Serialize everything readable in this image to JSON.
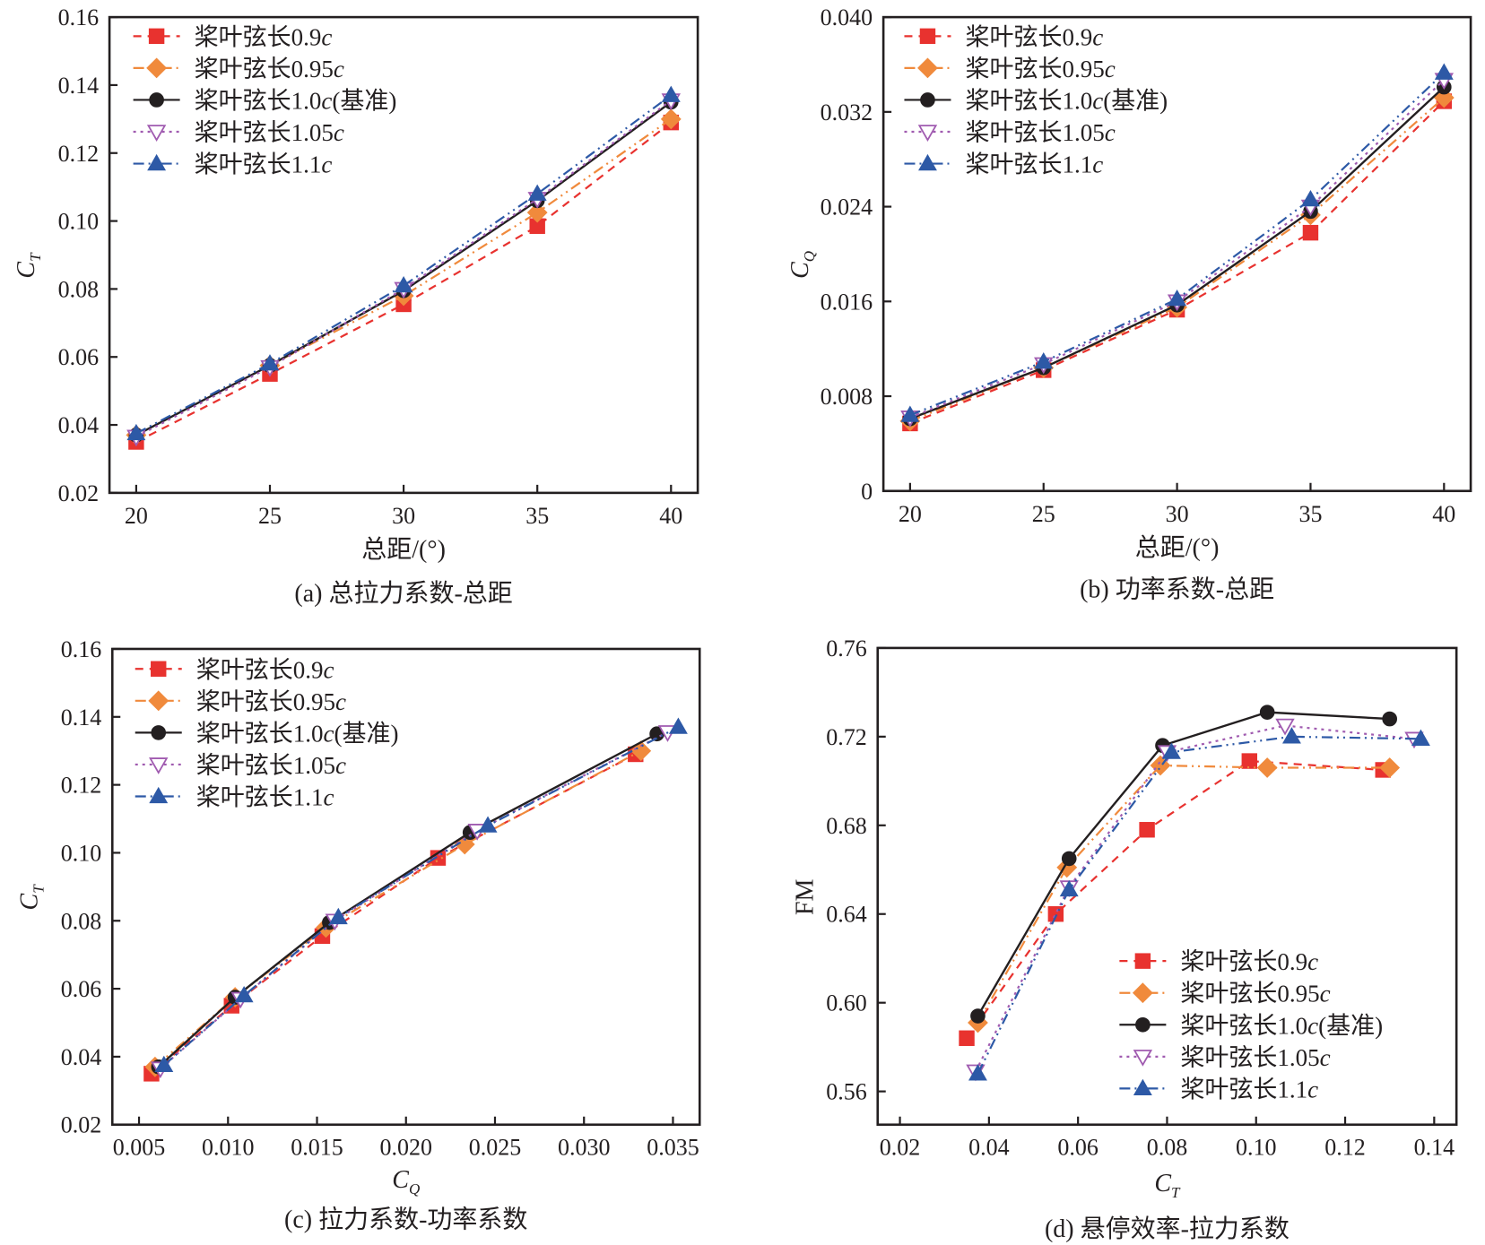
{
  "series_styles": [
    {
      "key": "s09",
      "color": "#e8322f",
      "dash": "dashed",
      "marker": "square",
      "filled": true
    },
    {
      "key": "s095",
      "color": "#f08a3c",
      "dash": "dash-dot-dot",
      "marker": "diamond",
      "filled": true
    },
    {
      "key": "s10",
      "color": "#231f20",
      "dash": "solid",
      "marker": "circle",
      "filled": true
    },
    {
      "key": "s105",
      "color": "#a05bb0",
      "dash": "dotted",
      "marker": "triangle-down",
      "filled": false
    },
    {
      "key": "s11",
      "color": "#2d59a6",
      "dash": "dash-dot-dot",
      "marker": "triangle-up",
      "filled": true
    }
  ],
  "legend_labels": [
    {
      "prefix": "桨叶弦长0.9",
      "italic": "c",
      "suffix": ""
    },
    {
      "prefix": "桨叶弦长0.95",
      "italic": "c",
      "suffix": ""
    },
    {
      "prefix": "桨叶弦长1.0",
      "italic": "c",
      "suffix": "(基准)"
    },
    {
      "prefix": "桨叶弦长1.05",
      "italic": "c",
      "suffix": ""
    },
    {
      "prefix": "桨叶弦长1.1",
      "italic": "c",
      "suffix": ""
    }
  ],
  "chart_data": [
    {
      "id": "a",
      "type": "line",
      "caption": "(a) 总拉力系数-总距",
      "xlabel": "总距/(°)",
      "ylabel": {
        "main": "C",
        "sub": "T"
      },
      "xlim": [
        19,
        41
      ],
      "ylim": [
        0.02,
        0.16
      ],
      "xticks": [
        20,
        25,
        30,
        35,
        40
      ],
      "xtick_labels": [
        "20",
        "25",
        "30",
        "35",
        "40"
      ],
      "yticks": [
        0.02,
        0.04,
        0.06,
        0.08,
        0.1,
        0.12,
        0.14,
        0.16
      ],
      "ytick_labels": [
        "0.02",
        "0.04",
        "0.06",
        "0.08",
        "0.10",
        "0.12",
        "0.14",
        "0.16"
      ],
      "legend": "top-left",
      "grid": false,
      "series": [
        {
          "name": "桨叶弦长0.9c",
          "x": [
            20,
            25,
            30,
            35,
            40
          ],
          "y": [
            0.035,
            0.055,
            0.0755,
            0.0985,
            0.129
          ]
        },
        {
          "name": "桨叶弦长0.95c",
          "x": [
            20,
            25,
            30,
            35,
            40
          ],
          "y": [
            0.037,
            0.0575,
            0.078,
            0.1025,
            0.13
          ]
        },
        {
          "name": "桨叶弦长1.0c(基准)",
          "x": [
            20,
            25,
            30,
            35,
            40
          ],
          "y": [
            0.037,
            0.0575,
            0.0795,
            0.106,
            0.135
          ]
        },
        {
          "name": "桨叶弦长1.05c",
          "x": [
            20,
            25,
            30,
            35,
            40
          ],
          "y": [
            0.0365,
            0.057,
            0.08,
            0.1065,
            0.1355
          ]
        },
        {
          "name": "桨叶弦长1.1c",
          "x": [
            20,
            25,
            30,
            35,
            40
          ],
          "y": [
            0.0375,
            0.058,
            0.081,
            0.108,
            0.137
          ]
        }
      ]
    },
    {
      "id": "b",
      "type": "line",
      "caption": "(b) 功率系数-总距",
      "xlabel": "总距/(°)",
      "ylabel": {
        "main": "C",
        "sub": "Q"
      },
      "xlim": [
        19,
        41
      ],
      "ylim": [
        0,
        0.04
      ],
      "xticks": [
        20,
        25,
        30,
        35,
        40
      ],
      "xtick_labels": [
        "20",
        "25",
        "30",
        "35",
        "40"
      ],
      "yticks": [
        0,
        0.008,
        0.016,
        0.024,
        0.032,
        0.04
      ],
      "ytick_labels": [
        "0",
        "0.008",
        "0.016",
        "0.024",
        "0.032",
        "0.040"
      ],
      "legend": "top-left",
      "grid": false,
      "series": [
        {
          "name": "桨叶弦长0.9c",
          "x": [
            20,
            25,
            30,
            35,
            40
          ],
          "y": [
            0.0057,
            0.0102,
            0.0153,
            0.0218,
            0.0329
          ]
        },
        {
          "name": "桨叶弦长0.95c",
          "x": [
            20,
            25,
            30,
            35,
            40
          ],
          "y": [
            0.0059,
            0.0104,
            0.0155,
            0.0233,
            0.0332
          ]
        },
        {
          "name": "桨叶弦长1.0c(基准)",
          "x": [
            20,
            25,
            30,
            35,
            40
          ],
          "y": [
            0.0061,
            0.0104,
            0.0157,
            0.0236,
            0.0341
          ]
        },
        {
          "name": "桨叶弦长1.05c",
          "x": [
            20,
            25,
            30,
            35,
            40
          ],
          "y": [
            0.0062,
            0.0107,
            0.016,
            0.024,
            0.0347
          ]
        },
        {
          "name": "桨叶弦长1.1c",
          "x": [
            20,
            25,
            30,
            35,
            40
          ],
          "y": [
            0.0064,
            0.0109,
            0.0162,
            0.0246,
            0.0353
          ]
        }
      ]
    },
    {
      "id": "c",
      "type": "line",
      "caption": "(c) 拉力系数-功率系数",
      "xlabel": {
        "main": "C",
        "sub": "Q"
      },
      "ylabel": {
        "main": "C",
        "sub": "T"
      },
      "xlim": [
        0.0035,
        0.0365
      ],
      "ylim": [
        0.02,
        0.16
      ],
      "xticks": [
        0.005,
        0.01,
        0.015,
        0.02,
        0.025,
        0.03,
        0.035
      ],
      "xtick_labels": [
        "0.005",
        "0.010",
        "0.015",
        "0.020",
        "0.025",
        "0.030",
        "0.035"
      ],
      "yticks": [
        0.02,
        0.04,
        0.06,
        0.08,
        0.1,
        0.12,
        0.14,
        0.16
      ],
      "ytick_labels": [
        "0.02",
        "0.04",
        "0.06",
        "0.08",
        "0.10",
        "0.12",
        "0.14",
        "0.16"
      ],
      "legend": "top-left",
      "grid": false,
      "series": [
        {
          "name": "桨叶弦长0.9c",
          "x": [
            0.0057,
            0.0102,
            0.0153,
            0.0218,
            0.0329
          ],
          "y": [
            0.035,
            0.055,
            0.0755,
            0.0985,
            0.129
          ]
        },
        {
          "name": "桨叶弦长0.95c",
          "x": [
            0.0059,
            0.0104,
            0.0155,
            0.0233,
            0.0332
          ],
          "y": [
            0.037,
            0.0575,
            0.078,
            0.1025,
            0.13
          ]
        },
        {
          "name": "桨叶弦长1.0c(基准)",
          "x": [
            0.0061,
            0.0104,
            0.0157,
            0.0236,
            0.0341
          ],
          "y": [
            0.037,
            0.0575,
            0.0795,
            0.106,
            0.135
          ]
        },
        {
          "name": "桨叶弦长1.05c",
          "x": [
            0.0062,
            0.0107,
            0.016,
            0.024,
            0.0347
          ],
          "y": [
            0.0365,
            0.057,
            0.08,
            0.1065,
            0.1355
          ]
        },
        {
          "name": "桨叶弦长1.1c",
          "x": [
            0.0064,
            0.0109,
            0.0162,
            0.0246,
            0.0353
          ],
          "y": [
            0.0375,
            0.058,
            0.081,
            0.108,
            0.137
          ]
        }
      ]
    },
    {
      "id": "d",
      "type": "line",
      "caption": "(d) 悬停效率-拉力系数",
      "xlabel": {
        "main": "C",
        "sub": "T"
      },
      "ylabel": "FM",
      "xlim": [
        0.015,
        0.145
      ],
      "ylim": [
        0.545,
        0.76
      ],
      "xticks": [
        0.02,
        0.04,
        0.06,
        0.08,
        0.1,
        0.12,
        0.14
      ],
      "xtick_labels": [
        "0.02",
        "0.04",
        "0.06",
        "0.08",
        "0.10",
        "0.12",
        "0.14"
      ],
      "yticks": [
        0.56,
        0.6,
        0.64,
        0.68,
        0.72,
        0.76
      ],
      "ytick_labels": [
        "0.56",
        "0.60",
        "0.64",
        "0.68",
        "0.72",
        "0.76"
      ],
      "legend": "bottom-right",
      "grid": false,
      "series": [
        {
          "name": "桨叶弦长0.9c",
          "x": [
            0.035,
            0.055,
            0.0755,
            0.0985,
            0.1285
          ],
          "y": [
            0.584,
            0.64,
            0.678,
            0.709,
            0.705
          ]
        },
        {
          "name": "桨叶弦长0.95c",
          "x": [
            0.0375,
            0.0575,
            0.0785,
            0.1025,
            0.13
          ],
          "y": [
            0.591,
            0.661,
            0.707,
            0.706,
            0.706
          ]
        },
        {
          "name": "桨叶弦长1.0c(基准)",
          "x": [
            0.0375,
            0.058,
            0.079,
            0.1025,
            0.13
          ],
          "y": [
            0.594,
            0.665,
            0.716,
            0.731,
            0.728
          ]
        },
        {
          "name": "桨叶弦长1.05c",
          "x": [
            0.037,
            0.058,
            0.08,
            0.1065,
            0.1355
          ],
          "y": [
            0.569,
            0.652,
            0.713,
            0.725,
            0.719
          ]
        },
        {
          "name": "桨叶弦长1.1c",
          "x": [
            0.0375,
            0.058,
            0.081,
            0.108,
            0.137
          ],
          "y": [
            0.568,
            0.651,
            0.713,
            0.72,
            0.719
          ]
        }
      ]
    }
  ]
}
